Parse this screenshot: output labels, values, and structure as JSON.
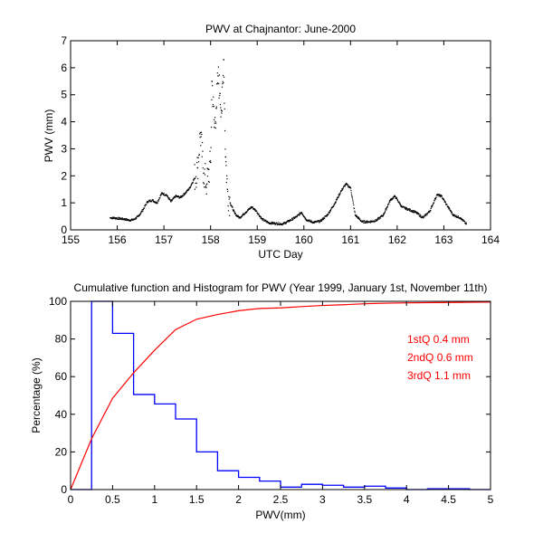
{
  "chart_data": [
    {
      "type": "scatter",
      "title": "PWV at Chajnantor: June-2000",
      "xlabel": "UTC Day",
      "ylabel": "PWV (mm)",
      "xlim": [
        155,
        164
      ],
      "ylim": [
        0,
        7
      ],
      "xticks": [
        155,
        156,
        157,
        158,
        159,
        160,
        161,
        162,
        163,
        164
      ],
      "yticks": [
        0,
        1,
        2,
        3,
        4,
        5,
        6,
        7
      ],
      "grid": false,
      "marker_color": "#000000",
      "series": [
        {
          "name": "PWV",
          "points": [
            [
              155.85,
              0.45
            ],
            [
              155.95,
              0.44
            ],
            [
              156.05,
              0.42
            ],
            [
              156.15,
              0.4
            ],
            [
              156.25,
              0.36
            ],
            [
              156.35,
              0.38
            ],
            [
              156.45,
              0.5
            ],
            [
              156.55,
              0.75
            ],
            [
              156.65,
              1.05
            ],
            [
              156.75,
              1.1
            ],
            [
              156.85,
              1.0
            ],
            [
              156.95,
              1.35
            ],
            [
              157.05,
              1.3
            ],
            [
              157.15,
              1.05
            ],
            [
              157.25,
              1.25
            ],
            [
              157.35,
              1.2
            ],
            [
              157.45,
              1.35
            ],
            [
              157.55,
              1.55
            ],
            [
              157.65,
              1.9
            ],
            [
              157.72,
              2.3
            ],
            [
              157.78,
              3.6
            ],
            [
              157.85,
              2.1
            ],
            [
              157.92,
              1.7
            ],
            [
              158.0,
              2.5
            ],
            [
              158.03,
              5.5
            ],
            [
              158.08,
              3.8
            ],
            [
              158.12,
              4.5
            ],
            [
              158.16,
              5.7
            ],
            [
              158.2,
              5.05
            ],
            [
              158.24,
              4.4
            ],
            [
              158.28,
              6.3
            ],
            [
              158.32,
              2.7
            ],
            [
              158.36,
              1.5
            ],
            [
              158.42,
              1.0
            ],
            [
              158.52,
              0.6
            ],
            [
              158.62,
              0.45
            ],
            [
              158.75,
              0.65
            ],
            [
              158.88,
              0.85
            ],
            [
              158.98,
              0.7
            ],
            [
              159.1,
              0.4
            ],
            [
              159.25,
              0.26
            ],
            [
              159.4,
              0.24
            ],
            [
              159.55,
              0.22
            ],
            [
              159.7,
              0.35
            ],
            [
              159.85,
              0.5
            ],
            [
              159.95,
              0.65
            ],
            [
              160.05,
              0.38
            ],
            [
              160.2,
              0.28
            ],
            [
              160.35,
              0.32
            ],
            [
              160.5,
              0.55
            ],
            [
              160.65,
              0.95
            ],
            [
              160.8,
              1.45
            ],
            [
              160.9,
              1.7
            ],
            [
              161.0,
              1.55
            ],
            [
              161.1,
              0.55
            ],
            [
              161.25,
              0.3
            ],
            [
              161.4,
              0.3
            ],
            [
              161.55,
              0.35
            ],
            [
              161.7,
              0.55
            ],
            [
              161.85,
              1.1
            ],
            [
              161.95,
              1.25
            ],
            [
              162.1,
              0.85
            ],
            [
              162.25,
              0.75
            ],
            [
              162.4,
              0.65
            ],
            [
              162.55,
              0.45
            ],
            [
              162.7,
              0.7
            ],
            [
              162.85,
              1.3
            ],
            [
              162.95,
              1.25
            ],
            [
              163.05,
              0.95
            ],
            [
              163.2,
              0.55
            ],
            [
              163.35,
              0.45
            ],
            [
              163.48,
              0.22
            ]
          ]
        }
      ]
    },
    {
      "type": "bar",
      "title": "Cumulative function and Histogram for PWV (Year 1999, January 1st, November 11th)",
      "xlabel": "PWV(mm)",
      "ylabel": "Percentage (%)",
      "xlim": [
        0,
        5
      ],
      "ylim": [
        0,
        100
      ],
      "xticks": [
        0,
        0.5,
        1,
        1.5,
        2,
        2.5,
        3,
        3.5,
        4,
        4.5,
        5
      ],
      "xticklabels": [
        "0",
        "0.5",
        "1",
        "1.5",
        "2",
        "2.5",
        "3",
        "3.5",
        "4",
        "4.5",
        "5"
      ],
      "yticks": [
        0,
        20,
        40,
        60,
        80,
        100
      ],
      "grid": false,
      "series": [
        {
          "name": "Histogram",
          "style": "stairs",
          "color": "#0000ff",
          "bin_edges": [
            0,
            0.25,
            0.5,
            0.75,
            1.0,
            1.25,
            1.5,
            1.75,
            2.0,
            2.25,
            2.5,
            2.75,
            3.0,
            3.25,
            3.5,
            3.75,
            4.0,
            4.25,
            4.5,
            4.75,
            5.0
          ],
          "values": [
            0,
            100,
            83,
            50.5,
            45.5,
            37.5,
            20,
            10,
            6.5,
            4.5,
            1.3,
            2.8,
            2.3,
            1.3,
            1.8,
            0.8,
            0,
            0.4,
            0.4,
            0
          ]
        },
        {
          "name": "Cumulative",
          "style": "line",
          "color": "#ff0000",
          "x": [
            0,
            0.25,
            0.5,
            0.75,
            1.0,
            1.25,
            1.5,
            1.75,
            2.0,
            2.25,
            2.5,
            2.75,
            3.0,
            3.25,
            3.5,
            3.75,
            4.0,
            4.5,
            5.0
          ],
          "values": [
            0,
            27,
            48.5,
            62,
            74,
            85,
            90.5,
            93,
            95,
            96.2,
            96.5,
            97.2,
            97.8,
            98.2,
            98.7,
            99.0,
            99.2,
            99.4,
            99.6
          ]
        }
      ],
      "annotations": [
        {
          "text": "1stQ 0.4 mm",
          "color": "#ff0000"
        },
        {
          "text": "2ndQ 0.6 mm",
          "color": "#ff0000"
        },
        {
          "text": "3rdQ 1.1 mm",
          "color": "#ff0000"
        }
      ]
    }
  ]
}
